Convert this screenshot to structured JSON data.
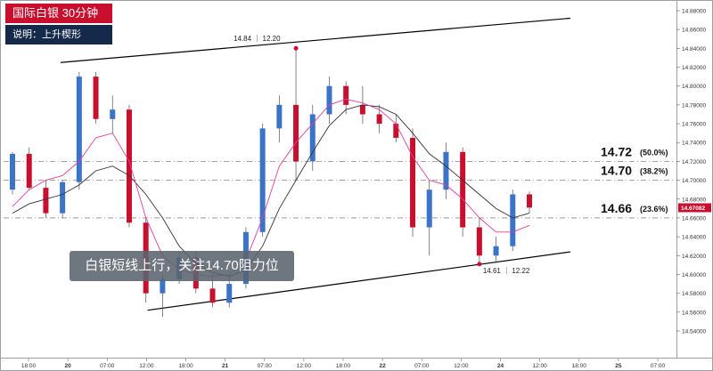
{
  "header": {
    "title": "国际白银 30分钟",
    "subtitle": "说明：上升楔形"
  },
  "note": "白银短线上行，关注14.70阻力位",
  "chart_data": {
    "type": "candlestick",
    "y_ticks": [
      "14.88000",
      "14.86000",
      "14.84000",
      "14.82000",
      "14.80000",
      "14.78000",
      "14.76000",
      "14.74000",
      "14.72000",
      "14.70000",
      "14.68000",
      "14.66000",
      "14.64000",
      "14.62000",
      "14.60000",
      "14.58000",
      "14.56000",
      "14.54000"
    ],
    "ylim": [
      14.53,
      14.885
    ],
    "x_ticks": [
      "18:00",
      "20",
      "07:00",
      "12:00",
      "18:00",
      "21",
      "07:00",
      "12:00",
      "18:00",
      "22",
      "07:00",
      "12:00",
      "24",
      "12:00",
      "18:00",
      "25",
      "07:00"
    ],
    "x_bold_ticks": [
      "20",
      "21",
      "22",
      "24",
      "25"
    ],
    "current_price": "14.67082",
    "current_price_value": 14.6708,
    "fib_levels": [
      {
        "price": 14.72,
        "label": "14.72",
        "pct": "(50.0%)"
      },
      {
        "price": 14.7,
        "label": "14.70",
        "pct": "(38.2%)"
      },
      {
        "price": 14.66,
        "label": "14.66",
        "pct": "(23.6%)"
      }
    ],
    "annotations": [
      {
        "text": "14.84 ｜ 12.20",
        "price": 14.842
      },
      {
        "text": "14.61 ｜ 12.22",
        "price": 14.611
      }
    ],
    "wedge_lines": [
      {
        "name": "upper",
        "from": {
          "bar": 3,
          "price": 14.825
        },
        "to": {
          "bar": 27,
          "price": 14.872
        }
      },
      {
        "name": "lower",
        "from": {
          "bar": 8,
          "price": 14.562
        },
        "to": {
          "bar": 27,
          "price": 14.624
        }
      }
    ],
    "candles": [
      {
        "o": 14.69,
        "h": 14.73,
        "l": 14.685,
        "c": 14.728
      },
      {
        "o": 14.728,
        "h": 14.735,
        "l": 14.69,
        "c": 14.692
      },
      {
        "o": 14.692,
        "h": 14.7,
        "l": 14.66,
        "c": 14.665
      },
      {
        "o": 14.665,
        "h": 14.7,
        "l": 14.66,
        "c": 14.698
      },
      {
        "o": 14.698,
        "h": 14.815,
        "l": 14.69,
        "c": 14.81
      },
      {
        "o": 14.81,
        "h": 14.815,
        "l": 14.76,
        "c": 14.765
      },
      {
        "o": 14.765,
        "h": 14.79,
        "l": 14.75,
        "c": 14.775
      },
      {
        "o": 14.775,
        "h": 14.78,
        "l": 14.65,
        "c": 14.655
      },
      {
        "o": 14.655,
        "h": 14.66,
        "l": 14.57,
        "c": 14.58
      },
      {
        "o": 14.58,
        "h": 14.6,
        "l": 14.555,
        "c": 14.595
      },
      {
        "o": 14.595,
        "h": 14.625,
        "l": 14.59,
        "c": 14.618
      },
      {
        "o": 14.618,
        "h": 14.625,
        "l": 14.58,
        "c": 14.585
      },
      {
        "o": 14.585,
        "h": 14.6,
        "l": 14.565,
        "c": 14.57
      },
      {
        "o": 14.57,
        "h": 14.6,
        "l": 14.565,
        "c": 14.59
      },
      {
        "o": 14.59,
        "h": 14.65,
        "l": 14.585,
        "c": 14.645
      },
      {
        "o": 14.645,
        "h": 14.76,
        "l": 14.64,
        "c": 14.755
      },
      {
        "o": 14.755,
        "h": 14.79,
        "l": 14.74,
        "c": 14.78
      },
      {
        "o": 14.78,
        "h": 14.84,
        "l": 14.7,
        "c": 14.72
      },
      {
        "o": 14.72,
        "h": 14.78,
        "l": 14.71,
        "c": 14.77
      },
      {
        "o": 14.77,
        "h": 14.81,
        "l": 14.76,
        "c": 14.8
      },
      {
        "o": 14.8,
        "h": 14.805,
        "l": 14.77,
        "c": 14.78
      },
      {
        "o": 14.78,
        "h": 14.8,
        "l": 14.76,
        "c": 14.77
      },
      {
        "o": 14.77,
        "h": 14.78,
        "l": 14.75,
        "c": 14.76
      },
      {
        "o": 14.76,
        "h": 14.77,
        "l": 14.74,
        "c": 14.745
      },
      {
        "o": 14.745,
        "h": 14.755,
        "l": 14.64,
        "c": 14.65
      },
      {
        "o": 14.65,
        "h": 14.7,
        "l": 14.62,
        "c": 14.69
      },
      {
        "o": 14.69,
        "h": 14.74,
        "l": 14.68,
        "c": 14.73
      },
      {
        "o": 14.73,
        "h": 14.735,
        "l": 14.64,
        "c": 14.65
      },
      {
        "o": 14.65,
        "h": 14.66,
        "l": 14.611,
        "c": 14.62
      },
      {
        "o": 14.62,
        "h": 14.64,
        "l": 14.612,
        "c": 14.63
      },
      {
        "o": 14.63,
        "h": 14.69,
        "l": 14.625,
        "c": 14.685
      },
      {
        "o": 14.685,
        "h": 14.688,
        "l": 14.665,
        "c": 14.671
      }
    ],
    "ma_pink": [
      14.672,
      14.69,
      14.7,
      14.705,
      14.72,
      14.745,
      14.75,
      14.72,
      14.66,
      14.62,
      14.605,
      14.6,
      14.598,
      14.6,
      14.615,
      14.66,
      14.715,
      14.74,
      14.76,
      14.78,
      14.786,
      14.782,
      14.775,
      14.76,
      14.725,
      14.7,
      14.695,
      14.68,
      14.66,
      14.645,
      14.645,
      14.652
    ],
    "ma_gray": [
      14.665,
      14.675,
      14.68,
      14.685,
      14.695,
      14.71,
      14.715,
      14.705,
      14.685,
      14.66,
      14.63,
      14.612,
      14.602,
      14.598,
      14.605,
      14.63,
      14.67,
      14.7,
      14.73,
      14.758,
      14.775,
      14.78,
      14.778,
      14.77,
      14.75,
      14.728,
      14.715,
      14.7,
      14.685,
      14.67,
      14.66,
      14.665
    ]
  }
}
